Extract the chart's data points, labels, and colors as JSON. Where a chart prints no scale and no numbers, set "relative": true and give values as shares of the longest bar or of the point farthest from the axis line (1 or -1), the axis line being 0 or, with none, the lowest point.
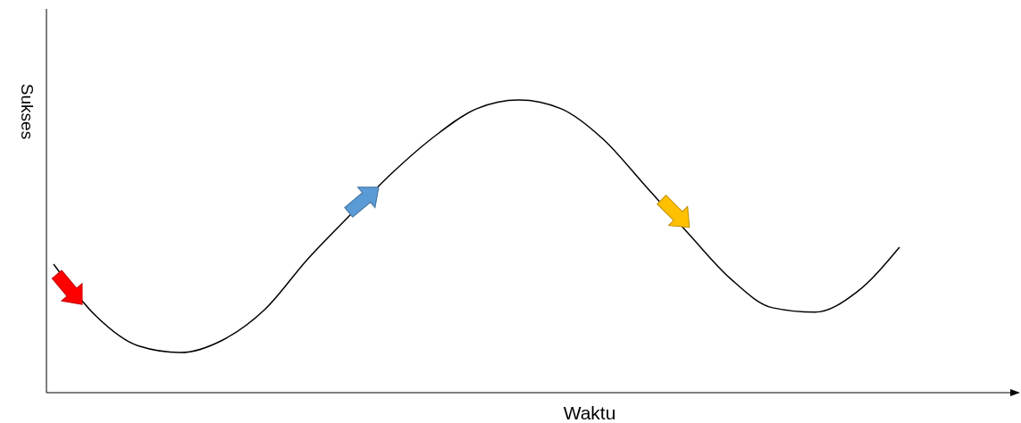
{
  "chart_data": {
    "type": "line",
    "relative": true,
    "xlabel": "Waktu",
    "ylabel": "Sukses",
    "categories": [
      null,
      null,
      null,
      null,
      null,
      null,
      null,
      null,
      null,
      null,
      null,
      null,
      null,
      null,
      null,
      null,
      null,
      null,
      null,
      null,
      null
    ],
    "series": [
      {
        "color": "#000000",
        "values": [
          0.439,
          0.262,
          0.16,
          0.137,
          0.18,
          0.285,
          0.455,
          0.605,
          0.75,
          0.875,
          0.97,
          1.0,
          0.97,
          0.865,
          0.705,
          0.545,
          0.39,
          0.29,
          0.275,
          0.345,
          0.497
        ]
      }
    ],
    "marker": "none",
    "line_style": "solid"
  }
}
